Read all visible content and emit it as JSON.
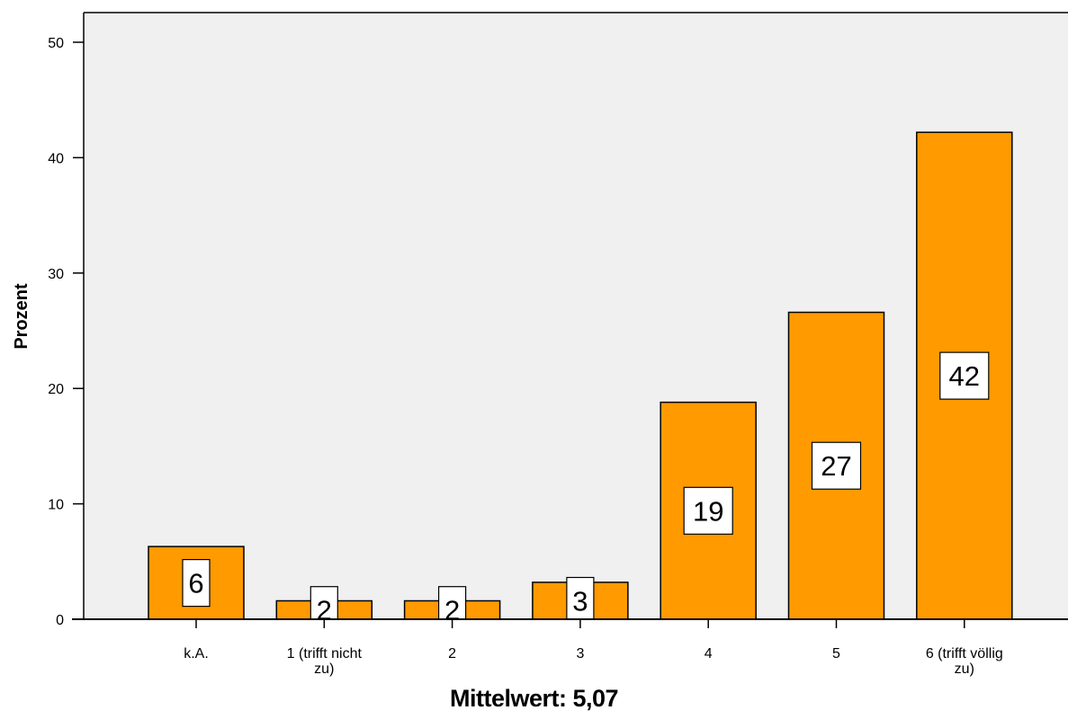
{
  "chart_data": {
    "type": "bar",
    "categories": [
      "k.A.",
      "1 (trifft nicht zu)",
      "2",
      "3",
      "4",
      "5",
      "6 (trifft völlig zu)"
    ],
    "category_label_lines": [
      [
        "k.A."
      ],
      [
        "1 (trifft nicht",
        "zu)"
      ],
      [
        "2"
      ],
      [
        "3"
      ],
      [
        "4"
      ],
      [
        "5"
      ],
      [
        "6 (trifft völlig",
        "zu)"
      ]
    ],
    "values": [
      6.3,
      1.6,
      1.6,
      3.2,
      18.8,
      26.6,
      42.2
    ],
    "data_labels": [
      "6",
      "2",
      "2",
      "3",
      "19",
      "27",
      "42"
    ],
    "xlabel": "",
    "ylabel": "Prozent",
    "ylim": [
      0,
      50
    ],
    "yticks": [
      0,
      10,
      20,
      30,
      40,
      50
    ],
    "grid": false,
    "bar_color": "#ff9a00",
    "plot_background": "#f0f0f0"
  },
  "mean_caption": "Mittelwert: 5,07"
}
